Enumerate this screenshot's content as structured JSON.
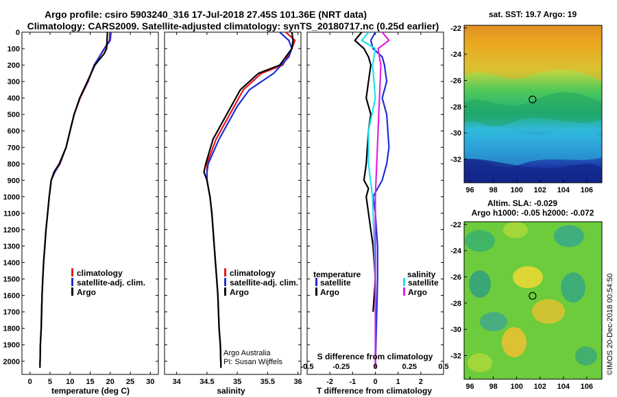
{
  "title_line1": "Argo profile: csiro 5903240_316 17-Jul-2018 27.45S 101.36E (NRT data)",
  "title_line2": "Climatology: CARS2009. Satellite-adjusted climatology: synTS_20180717.nc (0.25d earlier)",
  "map_top_title": "sat. SST: 19.7 Argo: 19",
  "map_bottom_title1": "Altim. SLA: -0.029",
  "map_bottom_title2": "Argo h1000: -0.05 h2000: -0.072",
  "credit1": "Argo Australia",
  "credit2": "PI: Susan Wijffels",
  "watermark": "©IMOS 20-Dec-2018 00:54:50",
  "colors": {
    "climatology": "#e8141e",
    "satellite_adj": "#1a2fd6",
    "argo": "#000000",
    "salinity_diff_sat": "#20e0ee",
    "salinity_diff_argo": "#e020e0"
  },
  "chart_data": [
    {
      "type": "line",
      "name": "temperature",
      "xlabel": "temperature (deg C)",
      "ylabel": "",
      "xlim": [
        -2,
        32
      ],
      "ylim": [
        2080,
        0
      ],
      "xticks": [
        0,
        5,
        10,
        15,
        20,
        25,
        30
      ],
      "yticks": [
        0,
        100,
        200,
        300,
        400,
        500,
        600,
        700,
        800,
        900,
        1000,
        1100,
        1200,
        1300,
        1400,
        1500,
        1600,
        1700,
        1800,
        1900,
        2000
      ],
      "legend": [
        "climatology",
        "satellite-adj. clim.",
        "Argo"
      ],
      "series": [
        {
          "name": "climatology",
          "x": [
            19.9,
            19.8,
            18.5,
            16.0,
            14.5,
            12.5,
            11.0,
            10.0,
            9.0,
            7.5,
            6.2,
            5.3,
            4.8,
            4.4,
            4.0,
            3.7,
            3.4,
            3.2,
            3.0,
            2.8,
            2.6,
            2.5
          ],
          "y": [
            0,
            50,
            100,
            200,
            300,
            400,
            500,
            600,
            700,
            800,
            850,
            900,
            1000,
            1100,
            1200,
            1300,
            1400,
            1500,
            1600,
            1800,
            1900,
            2040
          ]
        },
        {
          "name": "satellite-adj. clim.",
          "x": [
            20.2,
            20.0,
            18.6,
            16.0,
            14.4,
            12.4,
            11.0,
            10.0,
            9.0,
            7.4,
            6.2,
            5.3,
            4.8,
            4.4,
            4.0,
            3.7,
            3.4,
            3.2,
            3.0,
            2.8,
            2.6,
            2.5
          ],
          "y": [
            0,
            50,
            100,
            200,
            300,
            400,
            500,
            600,
            700,
            800,
            850,
            900,
            1000,
            1100,
            1200,
            1300,
            1400,
            1500,
            1600,
            1800,
            1900,
            2040
          ]
        },
        {
          "name": "Argo",
          "x": [
            19.3,
            19.2,
            19.1,
            18.5,
            16.2,
            14.3,
            12.4,
            11.0,
            10.0,
            9.0,
            7.3,
            6.0,
            5.3,
            4.8,
            4.4,
            4.0,
            3.7,
            3.4,
            3.2,
            3.0,
            2.8,
            2.6,
            2.5
          ],
          "y": [
            0,
            50,
            100,
            130,
            200,
            300,
            400,
            500,
            600,
            700,
            800,
            850,
            900,
            1000,
            1100,
            1200,
            1300,
            1400,
            1500,
            1600,
            1800,
            1900,
            2040
          ]
        }
      ]
    },
    {
      "type": "line",
      "name": "salinity",
      "xlabel": "salinity",
      "ylabel": "",
      "xlim": [
        33.8,
        36.05
      ],
      "ylim": [
        2080,
        0
      ],
      "xticks": [
        34,
        34.5,
        35,
        35.5,
        36
      ],
      "xticklabels": [
        "34",
        "34.5",
        "35",
        "35.5",
        "36"
      ],
      "legend": [
        "climatology",
        "satellite-adj. clim.",
        "Argo"
      ],
      "series": [
        {
          "name": "climatology",
          "x": [
            35.8,
            35.95,
            35.9,
            35.75,
            35.4,
            35.1,
            34.95,
            34.8,
            34.65,
            34.5,
            34.5,
            34.5,
            34.55,
            34.58,
            34.6,
            34.62,
            34.64,
            34.66,
            34.68,
            34.7,
            34.72,
            34.73
          ],
          "y": [
            0,
            50,
            100,
            200,
            250,
            350,
            450,
            550,
            650,
            800,
            850,
            900,
            1000,
            1100,
            1200,
            1300,
            1400,
            1500,
            1600,
            1800,
            1900,
            2040
          ]
        },
        {
          "name": "satellite-adj. clim.",
          "x": [
            35.7,
            35.85,
            35.9,
            35.85,
            35.6,
            35.2,
            35.0,
            34.85,
            34.7,
            34.52,
            34.5,
            34.5,
            34.55,
            34.58,
            34.6,
            34.62,
            34.64,
            34.66,
            34.68,
            34.7,
            34.72,
            34.73
          ],
          "y": [
            0,
            50,
            100,
            150,
            250,
            350,
            450,
            550,
            650,
            800,
            850,
            900,
            1000,
            1100,
            1200,
            1300,
            1400,
            1500,
            1600,
            1800,
            1900,
            2040
          ]
        },
        {
          "name": "Argo",
          "x": [
            35.9,
            35.92,
            35.9,
            35.7,
            35.35,
            35.05,
            34.9,
            34.75,
            34.6,
            34.48,
            34.45,
            34.5,
            34.55,
            34.58,
            34.6,
            34.62,
            34.64,
            34.66,
            34.68,
            34.7,
            34.72,
            34.73
          ],
          "y": [
            0,
            50,
            100,
            200,
            250,
            350,
            450,
            550,
            650,
            800,
            850,
            900,
            1000,
            1100,
            1200,
            1300,
            1400,
            1500,
            1600,
            1800,
            1900,
            2040
          ]
        }
      ]
    },
    {
      "type": "line",
      "name": "differences",
      "xlabel": "T difference from climatology",
      "xlabel2": "S difference from climatology",
      "xlim": [
        -3,
        3
      ],
      "ylim": [
        2080,
        0
      ],
      "xticks_T": [
        -2,
        -1,
        0,
        1,
        2
      ],
      "xticks_S": [
        -0.5,
        -0.25,
        0,
        0.25,
        0.5
      ],
      "xticklabels_S": [
        "-0.5",
        "-0.25",
        "0",
        "0.25",
        "0.5"
      ],
      "legend_temperature": {
        "heading": "temperature",
        "items": [
          "satellite",
          "Argo"
        ]
      },
      "legend_salinity": {
        "heading": "salinity",
        "items": [
          "satellite",
          "Argo"
        ]
      },
      "series": [
        {
          "name": "temperature satellite",
          "x": [
            0.0,
            -0.2,
            -0.1,
            0.3,
            0.4,
            0.5,
            0.3,
            0.5,
            0.6,
            0.5,
            0.3,
            0.1,
            -0.1,
            0.0,
            0.1,
            0.1,
            0.0
          ],
          "y": [
            0,
            50,
            100,
            150,
            200,
            300,
            400,
            500,
            700,
            800,
            900,
            950,
            1000,
            1100,
            1300,
            1500,
            2040
          ]
        },
        {
          "name": "temperature Argo",
          "x": [
            -0.6,
            -0.9,
            -0.5,
            -0.3,
            -0.2,
            -0.3,
            -0.4,
            -0.2,
            -0.3,
            -0.4,
            -0.5,
            -0.3,
            -0.4,
            -0.3,
            -0.1,
            0.0,
            -0.1
          ],
          "y": [
            0,
            50,
            100,
            150,
            200,
            300,
            400,
            500,
            600,
            800,
            900,
            950,
            1000,
            1100,
            1300,
            1500,
            1700
          ]
        },
        {
          "name": "salinity satellite",
          "x": [
            -0.05,
            -0.1,
            0.0,
            -0.02,
            0.0,
            -0.05,
            -0.05,
            -0.02,
            0.0,
            0.0
          ],
          "y": [
            0,
            50,
            100,
            200,
            400,
            600,
            800,
            1000,
            1500,
            2040
          ]
        },
        {
          "name": "salinity Argo",
          "x": [
            0.05,
            0.1,
            0.02,
            0.04,
            0.03,
            0.02,
            0.01,
            0.0,
            0.0,
            0.0
          ],
          "y": [
            0,
            50,
            100,
            200,
            400,
            600,
            800,
            1000,
            1500,
            2040
          ]
        }
      ]
    },
    {
      "type": "heatmap",
      "name": "satellite SST map",
      "xlim": [
        95.5,
        107.3
      ],
      "ylim": [
        -33.8,
        -21.8
      ],
      "xticks": [
        96,
        98,
        100,
        102,
        104,
        106
      ],
      "yticks": [
        -22,
        -24,
        -26,
        -28,
        -30,
        -32
      ],
      "marker": {
        "lon": 101.36,
        "lat": -27.45
      }
    },
    {
      "type": "heatmap",
      "name": "altimetry SLA map",
      "xlim": [
        95.5,
        107.3
      ],
      "ylim": [
        -33.8,
        -21.8
      ],
      "xticks": [
        96,
        98,
        100,
        102,
        104,
        106
      ],
      "yticks": [
        -22,
        -24,
        -26,
        -28,
        -30,
        -32
      ],
      "marker": {
        "lon": 101.36,
        "lat": -27.45
      }
    }
  ]
}
